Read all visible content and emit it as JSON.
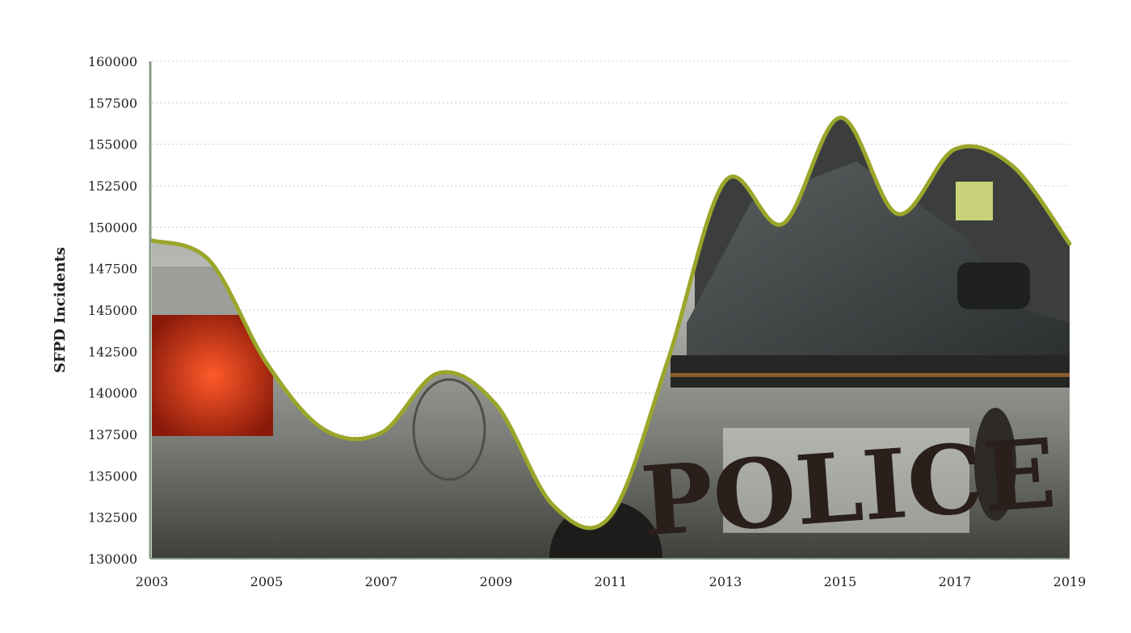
{
  "chart_data": {
    "type": "area",
    "title": "",
    "xlabel": "",
    "ylabel": "SFPD Incidents",
    "ylim": [
      130000,
      160000
    ],
    "xlim": [
      2003,
      2019
    ],
    "y_ticks": [
      130000,
      132500,
      135000,
      137500,
      140000,
      142500,
      145000,
      147500,
      150000,
      152500,
      155000,
      157500,
      160000
    ],
    "x_ticks": [
      2003,
      2005,
      2007,
      2009,
      2011,
      2013,
      2015,
      2017,
      2019
    ],
    "x_tick_labels": [
      "2003",
      "2005",
      "2007",
      "2009",
      "2011",
      "2013",
      "2015",
      "2017",
      "2019"
    ],
    "y_tick_labels": [
      "130000",
      "132500",
      "135000",
      "137500",
      "140000",
      "142500",
      "145000",
      "147500",
      "150000",
      "152500",
      "155000",
      "157500",
      "160000"
    ],
    "grid": true,
    "fill": "photo of a police car",
    "x": [
      2003,
      2004,
      2005,
      2006,
      2007,
      2008,
      2009,
      2010,
      2011,
      2012,
      2013,
      2014,
      2015,
      2016,
      2017,
      2018,
      2019
    ],
    "series": [
      {
        "values": [
          149200,
          148000,
          141800,
          137800,
          137600,
          141200,
          139300,
          133200,
          132600,
          142000,
          152800,
          150200,
          156600,
          150800,
          154700,
          153700,
          149000
        ]
      }
    ],
    "line_color": "#9aa62a"
  }
}
